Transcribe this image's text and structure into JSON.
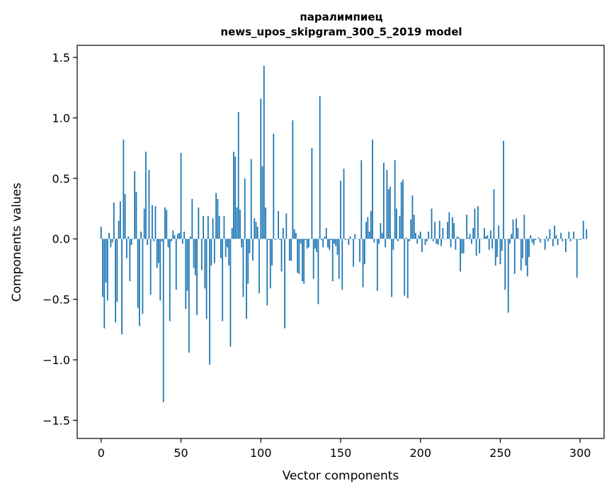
{
  "chart_data": {
    "type": "bar",
    "title": [
      "паралимпиец",
      "news_upos_skipgram_300_5_2019 model"
    ],
    "xlabel": "Vector components",
    "ylabel": "Components values",
    "xlim": [
      -15,
      315
    ],
    "ylim": [
      -1.65,
      1.6
    ],
    "xticks": [
      0,
      50,
      100,
      150,
      200,
      250,
      300
    ],
    "yticks": [
      -1.5,
      -1.0,
      -0.5,
      0.0,
      0.5,
      1.0,
      1.5
    ],
    "ytick_labels": [
      "−1.5",
      "−1.0",
      "−0.5",
      "0.0",
      "0.5",
      "1.0",
      "1.5"
    ],
    "grid": false,
    "bar_color": "#1f77b4",
    "values": [
      0.1,
      -0.48,
      -0.74,
      -0.36,
      -0.51,
      0.05,
      -0.07,
      -0.03,
      0.3,
      -0.69,
      -0.52,
      0.15,
      0.31,
      -0.79,
      0.82,
      0.37,
      -0.16,
      0.02,
      -0.35,
      -0.05,
      0.0,
      0.56,
      0.39,
      -0.57,
      -0.72,
      0.06,
      -0.62,
      0.25,
      0.72,
      -0.05,
      0.57,
      -0.46,
      0.28,
      -0.02,
      0.27,
      -0.24,
      -0.2,
      -0.51,
      -0.02,
      -1.35,
      0.26,
      0.24,
      -0.07,
      -0.68,
      -0.02,
      0.07,
      0.03,
      -0.42,
      0.04,
      0.05,
      0.71,
      -0.04,
      0.06,
      -0.58,
      -0.43,
      -0.94,
      0.02,
      0.33,
      -0.24,
      -0.3,
      -0.63,
      0.26,
      0.0,
      -0.26,
      0.19,
      -0.41,
      -0.66,
      0.19,
      -1.04,
      -0.22,
      0.17,
      -0.2,
      0.38,
      0.33,
      0.19,
      -0.16,
      -0.68,
      0.19,
      -0.15,
      -0.07,
      -0.22,
      -0.89,
      0.09,
      0.72,
      0.68,
      0.26,
      1.05,
      0.24,
      -0.07,
      -0.48,
      0.5,
      -0.66,
      -0.37,
      -0.12,
      0.66,
      -0.18,
      0.17,
      0.14,
      0.1,
      -0.45,
      1.16,
      0.6,
      1.43,
      0.26,
      -0.55,
      -0.01,
      -0.41,
      -0.22,
      0.87,
      -0.01,
      0.0,
      0.23,
      -0.01,
      -0.27,
      0.09,
      -0.74,
      0.21,
      0.0,
      -0.18,
      -0.18,
      0.98,
      0.08,
      0.05,
      -0.28,
      -0.29,
      -0.04,
      -0.35,
      -0.37,
      -0.01,
      -0.08,
      -0.07,
      0.0,
      0.75,
      -0.33,
      -0.08,
      -0.11,
      -0.54,
      1.18,
      -0.01,
      -0.07,
      0.02,
      0.09,
      -0.07,
      -0.09,
      -0.01,
      -0.35,
      -0.04,
      -0.06,
      -0.13,
      -0.33,
      0.48,
      -0.42,
      0.58,
      -0.01,
      0.0,
      -0.05,
      0.02,
      0.0,
      -0.23,
      0.04,
      0.0,
      0.0,
      -0.19,
      0.65,
      -0.4,
      -0.21,
      0.14,
      0.18,
      0.06,
      0.23,
      0.82,
      -0.03,
      0.0,
      -0.43,
      -0.04,
      0.13,
      0.05,
      0.63,
      -0.07,
      0.57,
      0.41,
      0.43,
      -0.48,
      -0.09,
      0.65,
      0.25,
      -0.02,
      0.19,
      0.47,
      0.49,
      -0.47,
      0.01,
      -0.49,
      -0.02,
      0.16,
      0.36,
      0.2,
      0.05,
      -0.04,
      0.03,
      0.06,
      -0.11,
      0.0,
      -0.05,
      -0.02,
      0.06,
      0.0,
      0.25,
      -0.02,
      0.14,
      -0.04,
      -0.05,
      0.15,
      -0.06,
      0.09,
      0.0,
      0.0,
      0.14,
      0.22,
      -0.07,
      0.18,
      0.13,
      -0.09,
      0.02,
      0.01,
      -0.27,
      -0.12,
      -0.12,
      0.0,
      0.2,
      0.01,
      0.04,
      -0.04,
      0.09,
      0.25,
      -0.14,
      0.27,
      -0.12,
      0.0,
      0.0,
      0.09,
      0.02,
      0.03,
      -0.09,
      0.07,
      -0.08,
      0.41,
      -0.22,
      -0.15,
      0.11,
      -0.21,
      -0.1,
      0.81,
      -0.42,
      0.0,
      -0.61,
      -0.04,
      0.04,
      0.16,
      -0.29,
      0.17,
      0.09,
      0.0,
      -0.26,
      -0.16,
      0.2,
      -0.22,
      -0.31,
      -0.15,
      0.03,
      -0.03,
      -0.05,
      -0.01,
      0.0,
      0.01,
      -0.03,
      0.0,
      0.0,
      -0.09,
      0.02,
      -0.02,
      0.08,
      0.0,
      -0.06,
      0.11,
      0.03,
      -0.05,
      0.0,
      0.05,
      -0.02,
      0.0,
      -0.11,
      0.0,
      0.06,
      -0.02,
      0.0,
      0.06,
      0.0,
      -0.32,
      0.0,
      -0.01,
      0.0,
      0.15,
      0.0,
      0.08
    ]
  }
}
